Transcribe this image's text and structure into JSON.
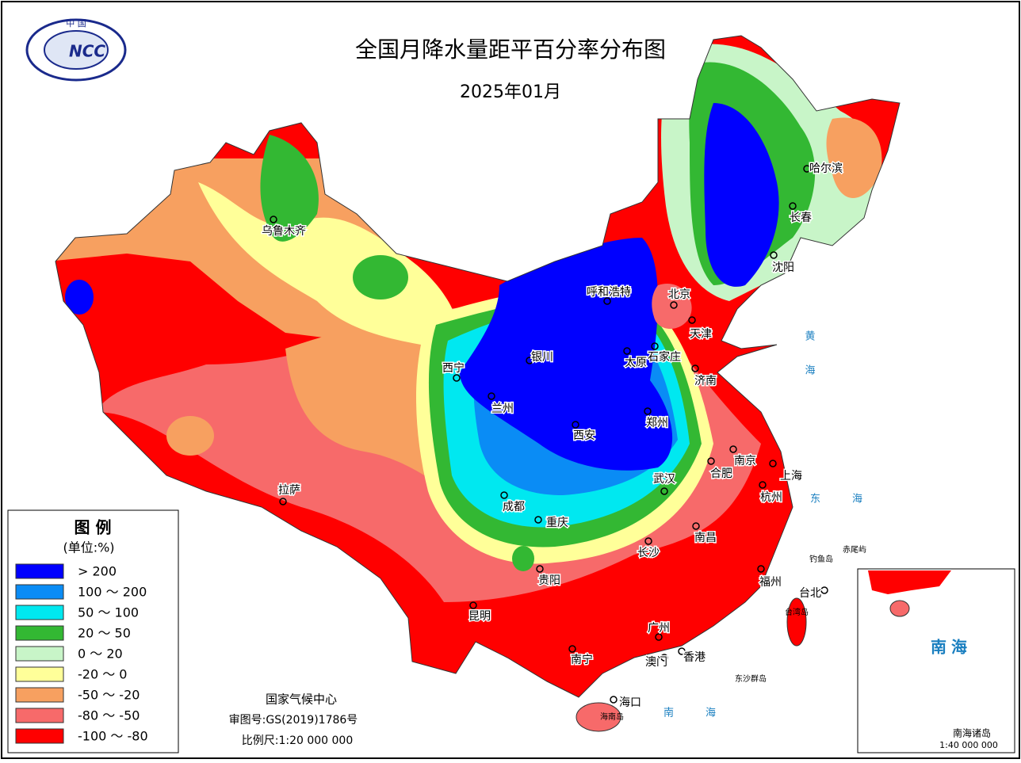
{
  "header": {
    "title": "全国月降水量距平百分率分布图",
    "subtitle": "2025年01月",
    "logo_top": "中 国",
    "logo_text": "NCC"
  },
  "legend": {
    "title": "图 例",
    "unit": "(单位:%)",
    "items": [
      {
        "label": "> 200",
        "color": "#0000ff"
      },
      {
        "label": "100 ～ 200",
        "color": "#0a8cf5"
      },
      {
        "label": "50 ～ 100",
        "color": "#00e8f0"
      },
      {
        "label": "20 ～ 50",
        "color": "#33b833"
      },
      {
        "label": "0 ～ 20",
        "color": "#c8f5c8"
      },
      {
        "label": "-20 ～ 0",
        "color": "#ffff99"
      },
      {
        "label": "-50 ～ -20",
        "color": "#f7a060"
      },
      {
        "label": "-80 ～ -50",
        "color": "#f76a6a"
      },
      {
        "label": "-100 ～ -80",
        "color": "#ff0000"
      }
    ]
  },
  "cities": [
    "乌鲁木齐",
    "哈尔滨",
    "长春",
    "沈阳",
    "呼和浩特",
    "北京",
    "天津",
    "石家庄",
    "太原",
    "银川",
    "西宁",
    "兰州",
    "济南",
    "郑州",
    "西安",
    "南京",
    "合肥",
    "上海",
    "武汉",
    "杭州",
    "成都",
    "重庆",
    "南昌",
    "长沙",
    "拉萨",
    "贵阳",
    "福州",
    "台北",
    "昆明",
    "广州",
    "南宁",
    "香港",
    "澳门",
    "海口"
  ],
  "seas": [
    "黄海",
    "东海",
    "南海"
  ],
  "islands": [
    "钓鱼岛",
    "赤尾屿",
    "台湾岛",
    "东沙群岛",
    "海南岛"
  ],
  "inset": {
    "sea": "南海",
    "islands": "南海诸岛",
    "scale": "1:40 000 000"
  },
  "footer": {
    "agency": "国家气候中心",
    "approval": "审图号:GS(2019)1786号",
    "scale": "比例尺:1:20 000 000"
  }
}
